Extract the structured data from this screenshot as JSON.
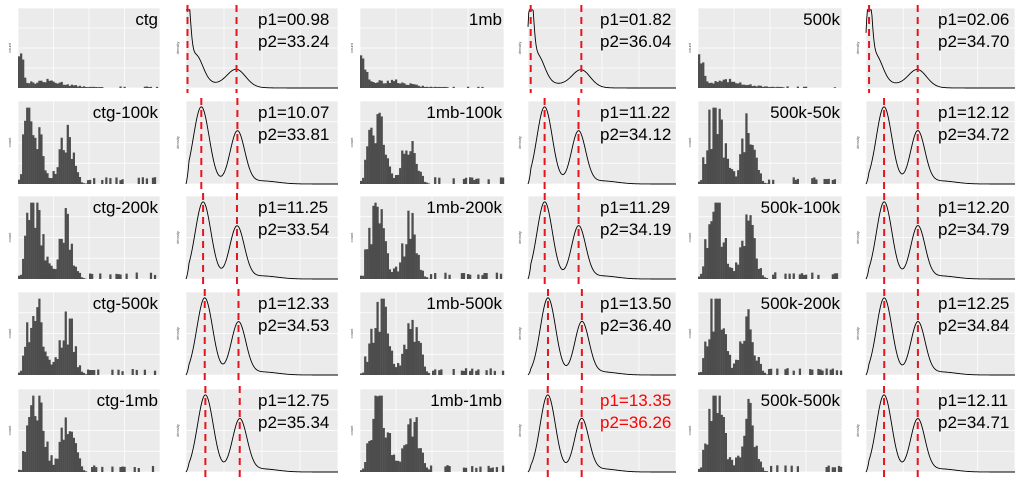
{
  "figure": {
    "columns": [
      "ctg",
      "1mb",
      "500k"
    ],
    "highlight_color": "#ff0000",
    "hist_color": "#4d4d4d",
    "panel_bg": "#ebebeb",
    "peak_line_color": "#e8141c",
    "axis_text_hist": "count",
    "axis_text_density": "density"
  },
  "chart_data": [
    {
      "type": "bar",
      "group": "ctg",
      "label": "ctg",
      "shape": "raw",
      "density": {
        "peaks": [
          0.98,
          33.24
        ],
        "p1_text": "p1=00.98",
        "p2_text": "p2=33.24",
        "highlight": false
      }
    },
    {
      "type": "bar",
      "group": "1mb",
      "label": "1mb",
      "shape": "raw",
      "density": {
        "peaks": [
          1.82,
          36.04
        ],
        "p1_text": "p1=01.82",
        "p2_text": "p2=36.04",
        "highlight": false
      }
    },
    {
      "type": "bar",
      "group": "500k",
      "label": "500k",
      "shape": "raw",
      "density": {
        "peaks": [
          2.06,
          34.7
        ],
        "p1_text": "p1=02.06",
        "p2_text": "p2=34.70",
        "highlight": false
      }
    },
    {
      "type": "bar",
      "group": "ctg",
      "label": "ctg-100k",
      "shape": "bimodal",
      "density": {
        "peaks": [
          10.07,
          33.81
        ],
        "p1_text": "p1=10.07",
        "p2_text": "p2=33.81",
        "highlight": false
      }
    },
    {
      "type": "bar",
      "group": "1mb",
      "label": "1mb-100k",
      "shape": "bimodal",
      "density": {
        "peaks": [
          11.22,
          34.12
        ],
        "p1_text": "p1=11.22",
        "p2_text": "p2=34.12",
        "highlight": false
      }
    },
    {
      "type": "bar",
      "group": "500k",
      "label": "500k-50k",
      "shape": "bimodal",
      "density": {
        "peaks": [
          12.12,
          34.72
        ],
        "p1_text": "p1=12.12",
        "p2_text": "p2=34.72",
        "highlight": false
      }
    },
    {
      "type": "bar",
      "group": "ctg",
      "label": "ctg-200k",
      "shape": "bimodal",
      "density": {
        "peaks": [
          11.25,
          33.54
        ],
        "p1_text": "p1=11.25",
        "p2_text": "p2=33.54",
        "highlight": false
      }
    },
    {
      "type": "bar",
      "group": "1mb",
      "label": "1mb-200k",
      "shape": "bimodal",
      "density": {
        "peaks": [
          11.29,
          34.19
        ],
        "p1_text": "p1=11.29",
        "p2_text": "p2=34.19",
        "highlight": false
      }
    },
    {
      "type": "bar",
      "group": "500k",
      "label": "500k-100k",
      "shape": "bimodal",
      "density": {
        "peaks": [
          12.2,
          34.79
        ],
        "p1_text": "p1=12.20",
        "p2_text": "p2=34.79",
        "highlight": false
      }
    },
    {
      "type": "bar",
      "group": "ctg",
      "label": "ctg-500k",
      "shape": "bimodal",
      "density": {
        "peaks": [
          12.33,
          34.53
        ],
        "p1_text": "p1=12.33",
        "p2_text": "p2=34.53",
        "highlight": false
      }
    },
    {
      "type": "bar",
      "group": "1mb",
      "label": "1mb-500k",
      "shape": "bimodal",
      "density": {
        "peaks": [
          13.5,
          36.4
        ],
        "p1_text": "p1=13.50",
        "p2_text": "p2=36.40",
        "highlight": false
      }
    },
    {
      "type": "bar",
      "group": "500k",
      "label": "500k-200k",
      "shape": "bimodal",
      "density": {
        "peaks": [
          12.25,
          34.84
        ],
        "p1_text": "p1=12.25",
        "p2_text": "p2=34.84",
        "highlight": false
      }
    },
    {
      "type": "bar",
      "group": "ctg",
      "label": "ctg-1mb",
      "shape": "bimodal",
      "density": {
        "peaks": [
          12.75,
          35.34
        ],
        "p1_text": "p1=12.75",
        "p2_text": "p2=35.34",
        "highlight": false
      }
    },
    {
      "type": "bar",
      "group": "1mb",
      "label": "1mb-1mb",
      "shape": "bimodal",
      "density": {
        "peaks": [
          13.35,
          36.26
        ],
        "p1_text": "p1=13.35",
        "p2_text": "p2=36.26",
        "highlight": true
      }
    },
    {
      "type": "bar",
      "group": "500k",
      "label": "500k-500k",
      "shape": "bimodal",
      "density": {
        "peaks": [
          12.11,
          34.71
        ],
        "p1_text": "p1=12.11",
        "p2_text": "p2=34.71",
        "highlight": false
      }
    }
  ]
}
